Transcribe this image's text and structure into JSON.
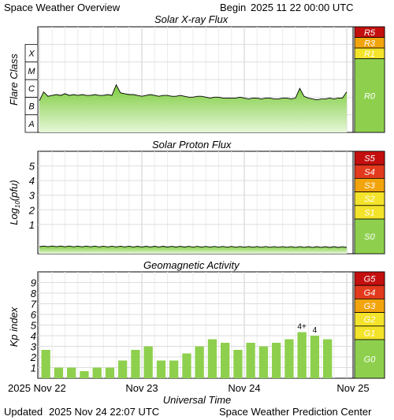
{
  "header": {
    "title": "Space Weather Overview",
    "begin_label": "Begin",
    "begin_value": "2025 11 22 00:00 UTC"
  },
  "footer": {
    "updated_label": "Updated",
    "updated_value": "2025 Nov 24 22:07 UTC",
    "credit": "Space Weather Prediction Center"
  },
  "colors": {
    "fill_top": "#7ccc3c",
    "fill_bottom": "#e6f6d8",
    "bar": "#8ed04e",
    "scale_green": "#8ed04e",
    "scale_yellow": "#f3e32a",
    "scale_orange": "#f2a40d",
    "scale_red": "#e23a1d",
    "scale_darkred": "#c40f0f"
  },
  "chart_data": [
    {
      "type": "area",
      "title": "Solar X-ray Flux",
      "ylabel": "Flare Class",
      "xlim": [
        0,
        72
      ],
      "ylim": [
        -8,
        -2
      ],
      "y_ticks": [
        {
          "label": "A",
          "value": -7.5
        },
        {
          "label": "B",
          "value": -6.5
        },
        {
          "label": "C",
          "value": -5.5
        },
        {
          "label": "M",
          "value": -4.5
        },
        {
          "label": "X",
          "value": -3.5
        }
      ],
      "x": [
        0,
        1,
        2,
        3,
        4,
        5,
        6,
        7,
        8,
        9,
        10,
        11,
        12,
        13,
        14,
        15,
        16,
        17,
        18,
        19,
        20,
        21,
        22,
        23,
        24,
        25,
        26,
        27,
        28,
        29,
        30,
        31,
        32,
        33,
        34,
        35,
        36,
        37,
        38,
        39,
        40,
        41,
        42,
        43,
        44,
        45,
        46,
        47,
        48,
        49,
        50,
        51,
        52,
        53,
        54,
        55,
        56,
        57,
        58,
        59,
        60,
        61,
        62,
        63,
        64,
        65,
        66,
        67,
        68,
        69,
        70,
        71,
        72
      ],
      "values": [
        -6.2,
        -5.7,
        -5.95,
        -5.9,
        -5.85,
        -5.9,
        -5.8,
        -5.9,
        -5.85,
        -5.9,
        -5.85,
        -5.9,
        -5.9,
        -5.85,
        -5.9,
        -5.9,
        -5.85,
        -5.9,
        -5.3,
        -5.75,
        -5.8,
        -5.85,
        -5.85,
        -5.9,
        -5.95,
        -5.9,
        -5.85,
        -5.9,
        -5.95,
        -5.9,
        -5.9,
        -5.95,
        -5.95,
        -5.9,
        -5.95,
        -6.0,
        -6.0,
        -5.95,
        -5.95,
        -6.0,
        -6.05,
        -6.0,
        -6.0,
        -6.05,
        -6.05,
        -6.05,
        -6.05,
        -6.0,
        -6.05,
        -6.1,
        -6.05,
        -6.05,
        -6.1,
        -6.05,
        -6.05,
        -6.1,
        -6.1,
        -6.05,
        -6.05,
        -6.1,
        -6.05,
        -5.5,
        -5.95,
        -6.05,
        -6.1,
        -6.15,
        -6.1,
        -6.1,
        -6.05,
        -6.1,
        -6.05,
        -6.05,
        -5.7
      ],
      "scale": [
        "R5",
        "R3",
        "R1",
        "R0"
      ]
    },
    {
      "type": "area",
      "title": "Solar Proton Flux",
      "ylabel": "Log10(pfu)",
      "ylabel_main": "Log",
      "ylabel_sub": "10",
      "ylabel_tail": "(pfu)",
      "xlim": [
        0,
        72
      ],
      "ylim": [
        -1,
        6
      ],
      "y_ticks": [
        1,
        2,
        3,
        4,
        5
      ],
      "x": [
        0,
        72
      ],
      "values": [
        -0.5,
        -0.55
      ],
      "scale": [
        "S5",
        "S4",
        "S3",
        "S2",
        "S1",
        "S0"
      ]
    },
    {
      "type": "bar",
      "title": "Geomagnetic Activity",
      "ylabel": "Kp index",
      "xlim": [
        0,
        72
      ],
      "ylim": [
        0,
        10
      ],
      "y_ticks": [
        1,
        2,
        3,
        4,
        5,
        6,
        7,
        8,
        9
      ],
      "x_ticks": [
        {
          "label": "2025 Nov 22",
          "value": 0
        },
        {
          "label": "Nov 23",
          "value": 24
        },
        {
          "label": "Nov 24",
          "value": 48
        },
        {
          "label": "Nov 25",
          "value": 72
        }
      ],
      "xlabel": "Universal Time",
      "values": [
        2.67,
        1.0,
        1.0,
        0.67,
        1.0,
        1.0,
        1.67,
        2.67,
        3.0,
        1.67,
        1.67,
        2.33,
        3.0,
        3.67,
        3.33,
        2.67,
        3.33,
        3.0,
        3.33,
        3.67,
        4.33,
        4.0,
        3.67
      ],
      "bar_labels": [
        {
          "index": 20,
          "label": "4+"
        },
        {
          "index": 21,
          "label": "4"
        }
      ],
      "scale": [
        "G5",
        "G4",
        "G3",
        "G2",
        "G1",
        "G0"
      ]
    }
  ]
}
